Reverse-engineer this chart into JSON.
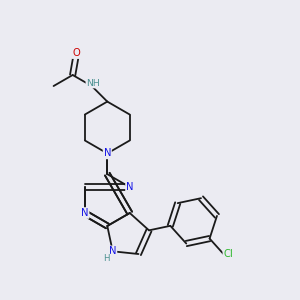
{
  "bg_color": "#ebebf2",
  "bond_color": "#1a1a1a",
  "N_color": "#1414e6",
  "O_color": "#cc0000",
  "Cl_color": "#2db82d",
  "H_color": "#4a9090",
  "font_size": 7.2,
  "lw": 1.3,
  "xlim": [
    0,
    10
  ],
  "ylim": [
    0,
    10
  ]
}
